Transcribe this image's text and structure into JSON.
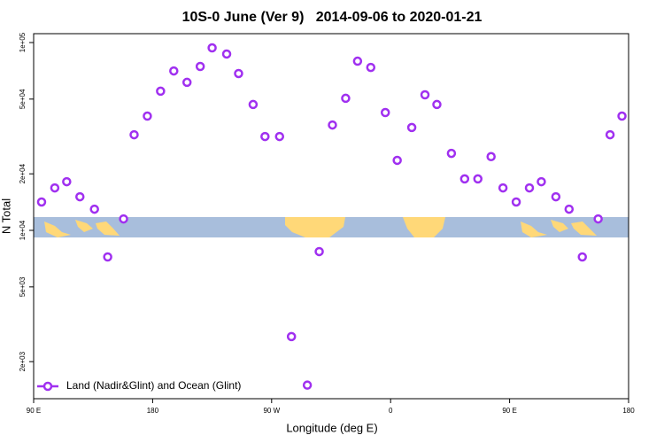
{
  "chart_data": {
    "type": "scatter",
    "title": "10S-0 June (Ver 9)   2014-09-06 to 2020-01-21",
    "x_label": "Longitude (deg E)",
    "y_label": "N Total",
    "log_y": true,
    "legend": "bottom-left",
    "xlim": [
      90,
      540
    ],
    "xticks": [
      {
        "value": 90,
        "label": "90 E"
      },
      {
        "value": 180,
        "label": "180"
      },
      {
        "value": 270,
        "label": "90 W"
      },
      {
        "value": 360,
        "label": "0"
      },
      {
        "value": 450,
        "label": "90 E"
      },
      {
        "value": 540,
        "label": "180"
      }
    ],
    "ylim": [
      1270,
      111500
    ],
    "yticks": [
      {
        "value": 2000,
        "label": "2e+03"
      },
      {
        "value": 5000,
        "label": "5e+03"
      },
      {
        "value": 10000,
        "label": "1e+04"
      },
      {
        "value": 20000,
        "label": "2e+04"
      },
      {
        "value": 50000,
        "label": "5e+04"
      },
      {
        "value": 100000,
        "label": "1e+05"
      }
    ],
    "series": [
      {
        "name": "Land (Nadir&Glint) and Ocean (Glint)",
        "color": "#a030f0",
        "x": [
          96,
          106,
          115,
          125,
          136,
          146,
          158,
          166,
          176,
          186,
          196,
          206,
          216,
          225,
          236,
          245,
          256,
          265,
          276,
          285,
          297,
          306,
          316,
          326,
          335,
          345,
          356,
          365,
          376,
          386,
          395,
          406,
          416,
          426,
          436,
          445,
          455,
          465,
          474,
          485,
          495,
          505,
          517,
          526,
          535
        ],
        "values": [
          14160,
          16830,
          18160,
          15100,
          12970,
          7220,
          11510,
          32300,
          40600,
          55100,
          70600,
          61400,
          74600,
          93700,
          86900,
          68400,
          46800,
          31600,
          31600,
          2720,
          1500,
          7710,
          36400,
          50500,
          79600,
          73700,
          42400,
          23600,
          35300,
          52700,
          46800,
          25700,
          18800,
          18800,
          24700,
          16830,
          14160,
          16830,
          18160,
          15100,
          12970,
          7220,
          11510,
          32300,
          40600
        ]
      }
    ]
  }
}
